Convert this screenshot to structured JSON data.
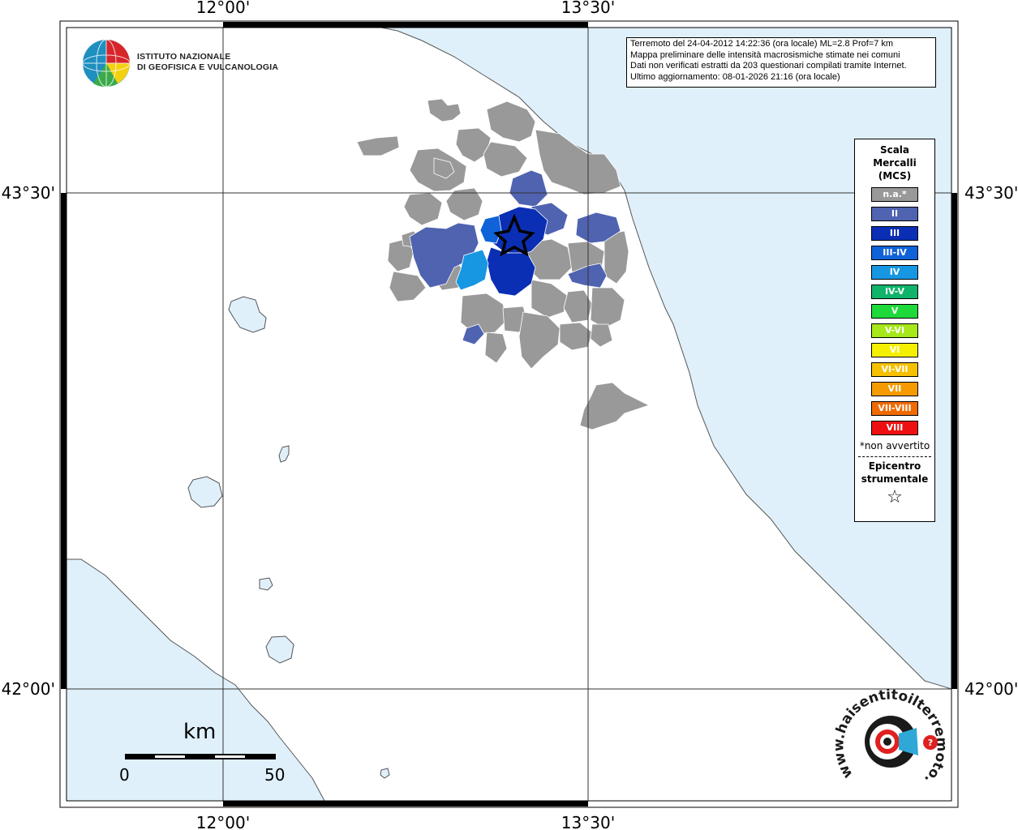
{
  "map": {
    "lon_ticks": [
      "12°00'",
      "13°30'"
    ],
    "lat_ticks": [
      "43°30'",
      "42°00'"
    ],
    "epicenter_marker": "star-icon"
  },
  "info": {
    "lines": [
      "Terremoto del 24-04-2012 14:22:36 (ora locale) ML=2.8 Prof=7 km",
      "Mappa preliminare delle intensità macrosismiche stimate nei comuni",
      "Dati non verificati estratti da 203 questionari compilati tramite Internet.",
      "Ultimo aggiornamento: 08-01-2026 21:16 (ora locale)"
    ]
  },
  "logo_ingv": {
    "line1": "ISTITUTO NAZIONALE",
    "line2": "DI GEOFISICA E VULCANOLOGIA"
  },
  "logo_hsit": {
    "text": "www.haisentitoilterremoto.it"
  },
  "legend": {
    "title": [
      "Scala",
      "Mercalli",
      "(MCS)"
    ],
    "items": [
      {
        "label": "n.a.*",
        "color": "#999999"
      },
      {
        "label": "II",
        "color": "#4f63b0"
      },
      {
        "label": "III",
        "color": "#0a2fb5"
      },
      {
        "label": "III-IV",
        "color": "#0f62d8"
      },
      {
        "label": "IV",
        "color": "#1797e2"
      },
      {
        "label": "IV-V",
        "color": "#10b36a"
      },
      {
        "label": "V",
        "color": "#1ed93a"
      },
      {
        "label": "V-VI",
        "color": "#a6e81a"
      },
      {
        "label": "VI",
        "color": "#f5f000"
      },
      {
        "label": "VI-VII",
        "color": "#f6c100"
      },
      {
        "label": "VII",
        "color": "#f59a00"
      },
      {
        "label": "VII-VIII",
        "color": "#f06a00"
      },
      {
        "label": "VIII",
        "color": "#ee1010"
      }
    ],
    "note": "*non avvertito",
    "epicenter": [
      "Epicentro",
      "strumentale"
    ],
    "star": "☆"
  },
  "scale_bar": {
    "unit": "km",
    "start": "0",
    "end": "50"
  },
  "colors": {
    "sea": "#dff0fb",
    "land": "#ffffff",
    "not_felt": "#999999"
  }
}
